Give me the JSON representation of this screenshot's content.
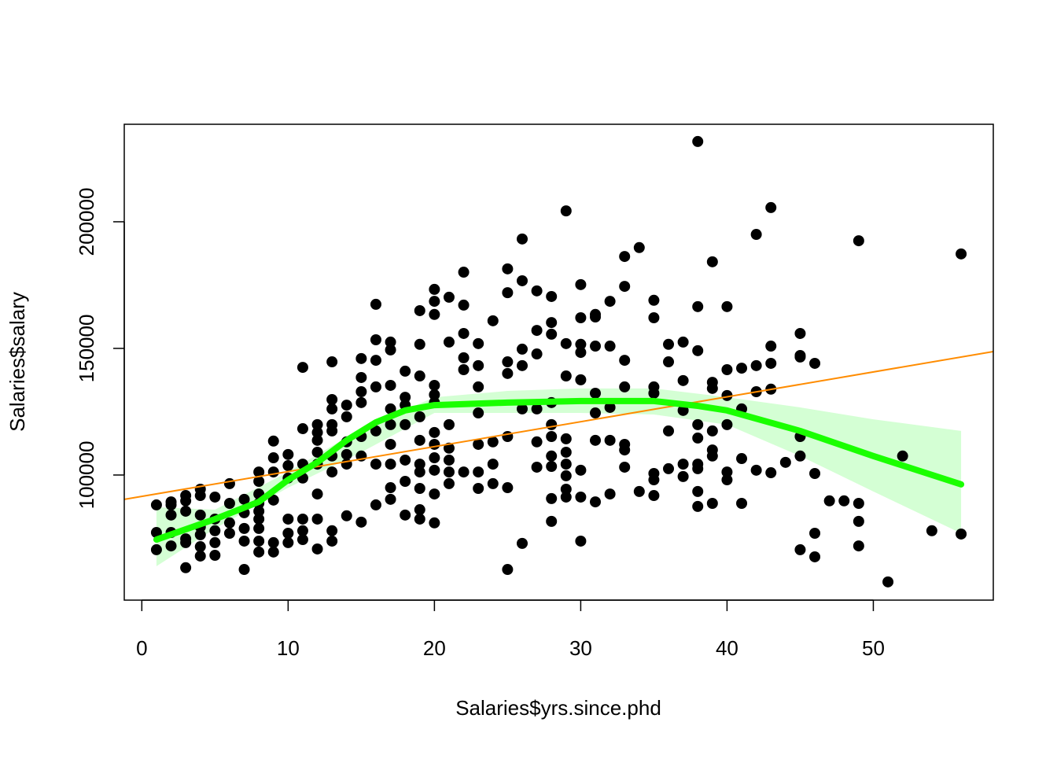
{
  "chart_data": {
    "type": "scatter",
    "x_label": "Salaries$yrs.since.phd",
    "y_label": "Salaries$salary",
    "xlim": [
      -1.2,
      58.2
    ],
    "ylim": [
      50600,
      238500
    ],
    "xticks": [
      0,
      10,
      20,
      30,
      40,
      50
    ],
    "yticks": [
      100000,
      150000,
      200000
    ],
    "color": "#000000",
    "x": [
      1,
      1,
      1,
      2,
      2,
      2,
      2,
      2,
      3,
      3,
      3,
      3,
      3,
      3,
      4,
      4,
      4,
      4,
      4,
      4,
      4,
      5,
      5,
      5,
      5,
      5,
      6,
      6,
      6,
      6,
      7,
      7,
      7,
      7,
      7,
      8,
      8,
      8,
      8,
      8,
      8,
      8,
      8,
      8,
      9,
      9,
      9,
      9,
      9,
      9,
      10,
      10,
      10,
      10,
      10,
      10,
      11,
      11,
      11,
      11,
      11,
      11,
      11,
      12,
      12,
      12,
      12,
      12,
      12,
      12,
      12,
      13,
      13,
      13,
      13,
      13,
      13,
      13,
      13,
      13,
      14,
      14,
      14,
      14,
      14,
      14,
      15,
      15,
      15,
      15,
      15,
      15,
      15,
      16,
      16,
      16,
      16,
      16,
      16,
      16,
      17,
      17,
      17,
      17,
      17,
      17,
      17,
      17,
      17,
      18,
      18,
      18,
      18,
      18,
      18,
      18,
      19,
      19,
      19,
      19,
      19,
      19,
      19,
      19,
      19,
      19,
      20,
      20,
      20,
      20,
      20,
      20,
      20,
      20,
      20,
      20,
      20,
      20,
      21,
      21,
      21,
      21,
      21,
      21,
      21,
      22,
      22,
      22,
      22,
      22,
      22,
      23,
      23,
      23,
      23,
      23,
      23,
      23,
      24,
      24,
      24,
      24,
      25,
      25,
      25,
      25,
      25,
      25,
      25,
      26,
      26,
      26,
      26,
      26,
      26,
      27,
      27,
      27,
      27,
      27,
      27,
      28,
      28,
      28,
      28,
      28,
      28,
      28,
      28,
      28,
      28,
      29,
      29,
      29,
      29,
      29,
      29,
      29,
      29,
      29,
      30,
      30,
      30,
      30,
      30,
      30,
      30,
      30,
      31,
      31,
      31,
      31,
      31,
      31,
      31,
      32,
      32,
      32,
      32,
      32,
      33,
      33,
      33,
      33,
      33,
      33,
      33,
      34,
      34,
      35,
      35,
      35,
      35,
      35,
      35,
      35,
      36,
      36,
      36,
      36,
      37,
      37,
      37,
      37,
      37,
      38,
      38,
      38,
      38,
      38,
      38,
      38,
      38,
      38,
      39,
      39,
      39,
      39,
      39,
      39,
      39,
      40,
      40,
      40,
      40,
      40,
      40,
      41,
      41,
      41,
      41,
      42,
      42,
      42,
      42,
      43,
      43,
      43,
      43,
      43,
      44,
      45,
      45,
      45,
      45,
      45,
      45,
      46,
      46,
      46,
      46,
      47,
      48,
      49,
      49,
      49,
      49,
      51,
      52,
      54,
      56,
      56
    ],
    "y": [
      88200,
      77300,
      70500,
      89400,
      88200,
      84200,
      77300,
      72000,
      91900,
      89800,
      85700,
      74800,
      73300,
      63400,
      94400,
      91900,
      84200,
      79500,
      76400,
      71700,
      68000,
      91300,
      82600,
      78000,
      73300,
      68300,
      96600,
      88800,
      81100,
      77000,
      90400,
      85100,
      78900,
      73900,
      62700,
      101200,
      97500,
      92500,
      88800,
      85700,
      82600,
      78900,
      73900,
      69600,
      113400,
      106800,
      101200,
      90100,
      73300,
      69600,
      108100,
      103700,
      98800,
      82600,
      77000,
      73300,
      142500,
      118300,
      104300,
      98800,
      82600,
      78000,
      74500,
      119900,
      116800,
      113700,
      109000,
      104300,
      92500,
      82600,
      70800,
      144700,
      129800,
      126100,
      119900,
      117400,
      107500,
      101200,
      78000,
      73900,
      127600,
      123000,
      113100,
      108100,
      104300,
      83900,
      146000,
      138500,
      132900,
      128600,
      115200,
      107500,
      81400,
      167400,
      153400,
      145300,
      134800,
      117400,
      104300,
      88200,
      152500,
      149400,
      135400,
      126100,
      119900,
      112100,
      104300,
      95000,
      90400,
      141000,
      130700,
      127600,
      119900,
      105900,
      97500,
      84200,
      164900,
      151600,
      139100,
      123000,
      113700,
      104300,
      101200,
      94700,
      86300,
      82600,
      173300,
      168600,
      163400,
      135400,
      131700,
      128600,
      116800,
      112100,
      106800,
      101900,
      92500,
      81100,
      170200,
      152500,
      119900,
      110600,
      105900,
      101200,
      96600,
      180100,
      167100,
      155900,
      146300,
      141600,
      101200,
      151900,
      143200,
      134800,
      124500,
      112100,
      101200,
      94700,
      160900,
      113100,
      104300,
      96600,
      181400,
      172000,
      144700,
      140100,
      115200,
      95000,
      62700,
      193200,
      176700,
      149700,
      143200,
      126100,
      73000,
      172700,
      157100,
      147800,
      126100,
      113100,
      103100,
      170500,
      160200,
      155600,
      128600,
      119900,
      115200,
      107500,
      103400,
      90700,
      81700,
      204300,
      151900,
      139100,
      114300,
      109000,
      104300,
      99700,
      94400,
      91300,
      175200,
      162100,
      151600,
      148400,
      137600,
      101900,
      91300,
      73900,
      163400,
      162400,
      150900,
      132300,
      124500,
      113700,
      89400,
      168600,
      150900,
      126700,
      113700,
      92500,
      186300,
      174500,
      145300,
      134800,
      112100,
      109900,
      103100,
      189800,
      93500,
      169000,
      162100,
      134800,
      132300,
      100600,
      98100,
      91900,
      151600,
      144700,
      117400,
      102500,
      152500,
      137300,
      125500,
      104300,
      99400,
      231700,
      166500,
      149100,
      119900,
      114600,
      104300,
      102500,
      93500,
      87600,
      184200,
      136600,
      134200,
      117400,
      109900,
      107500,
      88800,
      166500,
      141600,
      131400,
      119900,
      101200,
      98100,
      142200,
      126100,
      106500,
      88800,
      195000,
      143200,
      132900,
      101900,
      205600,
      150900,
      144100,
      133900,
      100900,
      105000,
      155900,
      147200,
      146600,
      115200,
      107500,
      70500,
      144100,
      100600,
      77000,
      67700,
      89800,
      89800,
      192500,
      88800,
      81700,
      72000,
      57800,
      107500,
      78000,
      187300,
      76700
    ],
    "fit_line": {
      "color": "#ff8c00",
      "x": [
        -1.2,
        58.2
      ],
      "y": [
        90370,
        148760
      ]
    },
    "smooth": {
      "color": "#1aff00",
      "x": [
        1,
        5,
        8,
        10,
        12,
        14,
        16,
        18,
        20,
        25,
        30,
        35,
        38,
        40,
        45,
        50,
        56
      ],
      "y": [
        74500,
        82600,
        89400,
        98100,
        105000,
        113700,
        120800,
        125500,
        127600,
        128600,
        129200,
        129200,
        127300,
        125500,
        117400,
        107500,
        96300
      ]
    },
    "band": {
      "color": "#ccffcc",
      "x": [
        1,
        5,
        10,
        15,
        20,
        25,
        30,
        35,
        40,
        45,
        50,
        56
      ],
      "upper": [
        87300,
        86300,
        101200,
        118300,
        130700,
        133200,
        134200,
        134200,
        130700,
        126700,
        122000,
        117400
      ],
      "lower": [
        64000,
        78900,
        95000,
        109000,
        124500,
        124500,
        124500,
        123900,
        119900,
        107500,
        93500,
        77000
      ]
    }
  }
}
